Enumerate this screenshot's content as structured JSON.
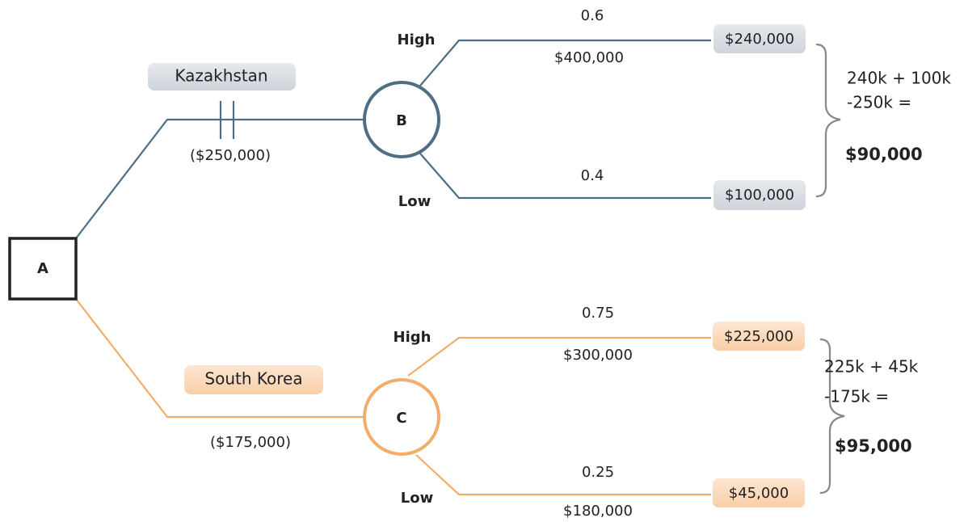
{
  "nodes": [
    {
      "label": "A"
    },
    {
      "label": "B"
    },
    {
      "label": "C"
    }
  ],
  "options": [
    {
      "name": "Kazakhstan",
      "cost": "($250,000)",
      "outcomes": [
        {
          "state": "High",
          "probability": "0.6",
          "payoff": "$400,000",
          "expected": "$240,000"
        },
        {
          "state": "Low",
          "probability": "0.4",
          "payoff": null,
          "expected": "$100,000"
        }
      ],
      "calculation": [
        "240k + 100k",
        "-250k ="
      ],
      "result": "$90,000"
    },
    {
      "name": "South Korea",
      "cost": "($175,000)",
      "outcomes": [
        {
          "state": "High",
          "probability": "0.75",
          "payoff": "$300,000",
          "expected": "$225,000"
        },
        {
          "state": "Low",
          "probability": "0.25",
          "payoff": "$180,000",
          "expected": "$45,000"
        }
      ],
      "calculation": [
        "225k + 45k",
        "-175k ="
      ],
      "result": "$95,000"
    }
  ]
}
